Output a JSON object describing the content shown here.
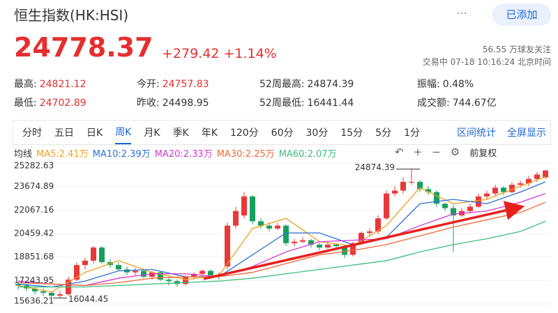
{
  "header": {
    "title": "恒生指数(HK:HSI)",
    "button": "已添加"
  },
  "quote": {
    "price": "24778.37",
    "change": "+279.42",
    "change_pct": "+1.14%",
    "followers": "56.55 万球友关注",
    "status": "交易中 07-18 10:16:24 北京时间"
  },
  "stats": [
    [
      {
        "label": "最高:",
        "value": "24821.12",
        "tone": "up"
      },
      {
        "label": "今开:",
        "value": "24757.83",
        "tone": "up"
      },
      {
        "label": "52周最高:",
        "value": "24874.39",
        "tone": "flat"
      },
      {
        "label": "振幅:",
        "value": "0.48%",
        "tone": "flat"
      }
    ],
    [
      {
        "label": "最低:",
        "value": "24702.89",
        "tone": "up"
      },
      {
        "label": "昨收:",
        "value": "24498.95",
        "tone": "flat"
      },
      {
        "label": "52周最低:",
        "value": "16441.44",
        "tone": "flat"
      },
      {
        "label": "成交额:",
        "value": "744.67亿",
        "tone": "flat"
      }
    ]
  ],
  "tabs": [
    "分时",
    "五日",
    "日K",
    "周K",
    "月K",
    "季K",
    "年K",
    "120分",
    "60分",
    "30分",
    "15分",
    "5分",
    "1分"
  ],
  "active_tab": 3,
  "tools": [
    "区间统计",
    "全屏显示"
  ],
  "ma": {
    "label": "均线",
    "adjust": "前复权",
    "items": [
      {
        "text": "MA5:2.41万",
        "color": "#f0a020",
        "values": [
          16900,
          16450,
          17800,
          18600,
          17800,
          17300,
          17600,
          20800,
          21500,
          19900,
          19600,
          21000,
          23600,
          22500,
          22800,
          23700,
          24350
        ]
      },
      {
        "text": "MA10:2.39万",
        "color": "#2f6fd6",
        "values": [
          17000,
          16800,
          17200,
          17900,
          18000,
          17500,
          17500,
          19000,
          20500,
          20500,
          19700,
          20200,
          22500,
          22800,
          22500,
          23300,
          24000
        ]
      },
      {
        "text": "MA20:2.33万",
        "color": "#d23ad0",
        "values": [
          17200,
          17000,
          16900,
          17400,
          17700,
          17700,
          17500,
          18200,
          19200,
          19900,
          20000,
          20100,
          21000,
          21800,
          22000,
          22600,
          23200
        ]
      },
      {
        "text": "MA30:2.25万",
        "color": "#ef6a3a",
        "values": [
          17100,
          17000,
          16900,
          17100,
          17400,
          17500,
          17500,
          17800,
          18400,
          19000,
          19300,
          19700,
          20300,
          20900,
          21400,
          21900,
          22600
        ]
      },
      {
        "text": "MA60:2.07万",
        "color": "#3dbd7d",
        "values": [
          16800,
          16800,
          16800,
          16900,
          17000,
          17100,
          17200,
          17400,
          17700,
          18000,
          18300,
          18600,
          19200,
          19700,
          20100,
          20600,
          21300
        ]
      }
    ]
  },
  "chart": {
    "type": "candlestick",
    "up_color": "#e8383a",
    "down_color": "#17a05d",
    "ylim": [
      15636.21,
      25282.63
    ],
    "yticks": [
      25282.63,
      23674.89,
      22067.16,
      20459.42,
      18851.68,
      17243.95,
      15636.21
    ],
    "ma_x": [
      0,
      4,
      8,
      12,
      16,
      20,
      24,
      28,
      32,
      36,
      40,
      44,
      48,
      52,
      56,
      60,
      63
    ],
    "candles": [
      [
        17000,
        17100,
        16600,
        16900
      ],
      [
        16900,
        17000,
        16500,
        16700
      ],
      [
        16700,
        16800,
        16300,
        16500
      ],
      [
        16500,
        16700,
        16200,
        16400
      ],
      [
        16400,
        16500,
        16100,
        16200
      ],
      [
        16200,
        16500,
        16044.45,
        16300
      ],
      [
        16300,
        17500,
        16200,
        17300
      ],
      [
        17300,
        18500,
        17200,
        18300
      ],
      [
        18300,
        18800,
        18000,
        18600
      ],
      [
        18600,
        19600,
        18400,
        19500
      ],
      [
        19500,
        19600,
        18400,
        18500
      ],
      [
        18500,
        18700,
        18100,
        18300
      ],
      [
        18300,
        18500,
        17900,
        18000
      ],
      [
        18000,
        18200,
        17600,
        17800
      ],
      [
        17800,
        18100,
        17600,
        17900
      ],
      [
        17900,
        18000,
        17400,
        17500
      ],
      [
        17500,
        17900,
        17300,
        17800
      ],
      [
        17800,
        17900,
        17200,
        17300
      ],
      [
        17300,
        17500,
        16900,
        17200
      ],
      [
        17200,
        17300,
        16800,
        17000
      ],
      [
        17000,
        17600,
        16900,
        17500
      ],
      [
        17500,
        17800,
        17300,
        17700
      ],
      [
        17700,
        18000,
        17500,
        17900
      ],
      [
        17900,
        18000,
        17400,
        17600
      ],
      [
        17600,
        17800,
        17300,
        17500
      ],
      [
        18200,
        21200,
        18000,
        21000
      ],
      [
        21000,
        22300,
        20800,
        22000
      ],
      [
        21700,
        23300,
        21500,
        23000
      ],
      [
        23000,
        23100,
        21100,
        21300
      ],
      [
        21300,
        21500,
        20800,
        21000
      ],
      [
        21000,
        21200,
        20600,
        20800
      ],
      [
        20800,
        21200,
        20700,
        21000
      ],
      [
        21000,
        21100,
        19600,
        19800
      ],
      [
        19800,
        20100,
        19600,
        19900
      ],
      [
        19900,
        20200,
        19800,
        20000
      ],
      [
        20000,
        20100,
        19500,
        19700
      ],
      [
        19700,
        19800,
        19300,
        19500
      ],
      [
        19500,
        19900,
        19400,
        19700
      ],
      [
        19700,
        19800,
        19400,
        19600
      ],
      [
        19600,
        19700,
        18800,
        19000
      ],
      [
        19000,
        19900,
        18900,
        19800
      ],
      [
        19800,
        20600,
        19700,
        20500
      ],
      [
        20500,
        20800,
        20300,
        20600
      ],
      [
        20600,
        21700,
        20400,
        21500
      ],
      [
        21500,
        23400,
        21400,
        23200
      ],
      [
        23200,
        23700,
        23000,
        23400
      ],
      [
        23400,
        24300,
        23200,
        24000
      ],
      [
        24000,
        24874.39,
        23800,
        24000
      ],
      [
        24000,
        24100,
        23300,
        23500
      ],
      [
        23500,
        23700,
        23100,
        23300
      ],
      [
        23300,
        23400,
        22300,
        22500
      ],
      [
        22500,
        22600,
        22000,
        22200
      ],
      [
        22200,
        22400,
        19200,
        21700
      ],
      [
        21700,
        22200,
        21600,
        22000
      ],
      [
        22000,
        22500,
        21800,
        22300
      ],
      [
        22300,
        23200,
        22200,
        23000
      ],
      [
        23000,
        23400,
        22800,
        23200
      ],
      [
        23200,
        23800,
        23000,
        23600
      ],
      [
        23600,
        23700,
        23100,
        23300
      ],
      [
        23300,
        24000,
        23200,
        23800
      ],
      [
        23800,
        24100,
        23600,
        23900
      ],
      [
        23900,
        24400,
        23700,
        24200
      ],
      [
        24200,
        24700,
        24000,
        24500
      ],
      [
        24300,
        24821.12,
        24200,
        24778.37
      ]
    ]
  }
}
